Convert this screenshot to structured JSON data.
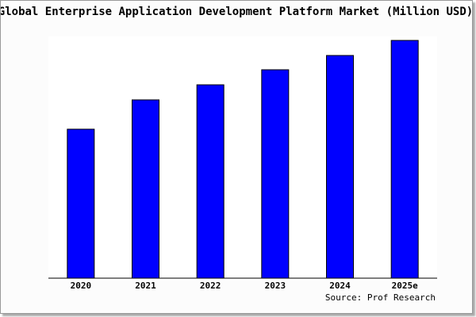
{
  "chart_data": {
    "type": "bar",
    "title": "Global Enterprise Application Development Platform Market (Million USD)",
    "source": "Source: Prof Research",
    "categories": [
      "2020",
      "2021",
      "2022",
      "2023",
      "2024",
      "2025e"
    ],
    "values": [
      188,
      225,
      244,
      263,
      281,
      300
    ],
    "color": "#0000ff",
    "ylim": [
      0,
      300
    ]
  }
}
